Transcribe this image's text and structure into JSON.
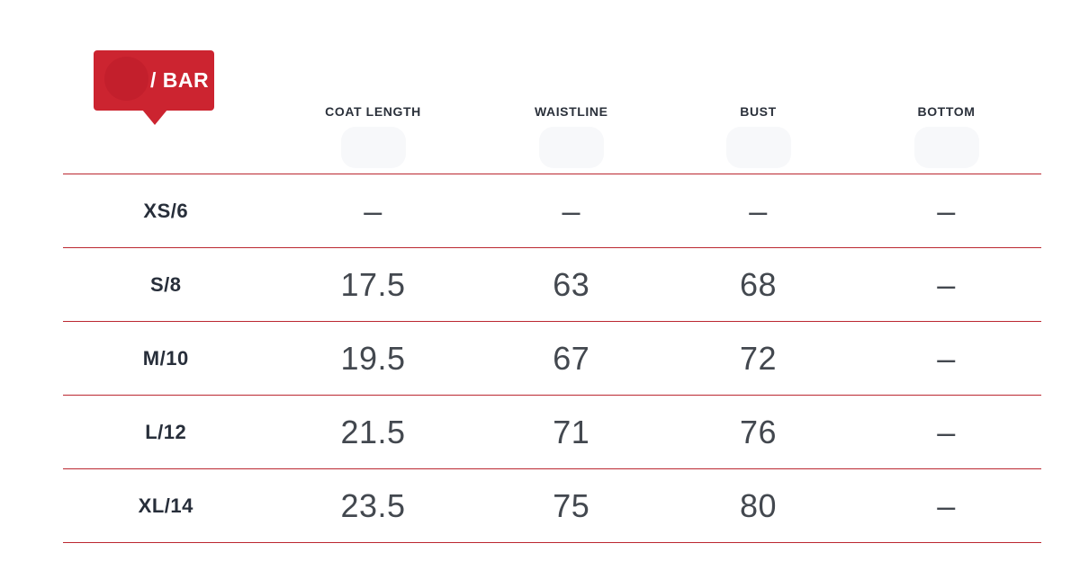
{
  "badge": {
    "label": "/ BAR",
    "background_color": "#cc2430",
    "logo_circle_color": "#c31f2c",
    "text_color": "#ffffff"
  },
  "table": {
    "line_color": "#bb2730",
    "header_text_color": "#2b313b",
    "size_text_color": "#272e3a",
    "value_text_color": "#43484f",
    "columns": [
      "COAT LENGTH",
      "WAISTLINE",
      "BUST",
      "BOTTOM"
    ],
    "rows": [
      {
        "size": "XS/6",
        "values": [
          "–",
          "–",
          "–",
          "–"
        ]
      },
      {
        "size": "S/8",
        "values": [
          "17.5",
          "63",
          "68",
          "–"
        ]
      },
      {
        "size": "M/10",
        "values": [
          "19.5",
          "67",
          "72",
          "–"
        ]
      },
      {
        "size": "L/12",
        "values": [
          "21.5",
          "71",
          "76",
          "–"
        ]
      },
      {
        "size": "XL/14",
        "values": [
          "23.5",
          "75",
          "80",
          "–"
        ]
      }
    ]
  }
}
